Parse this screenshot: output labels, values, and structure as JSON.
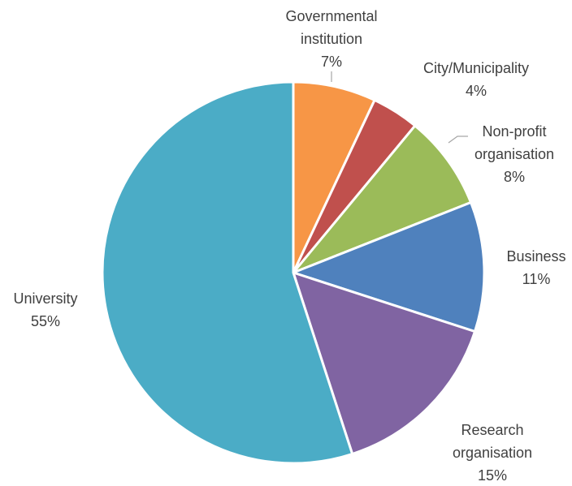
{
  "chart_data": {
    "type": "pie",
    "title": "",
    "slices": [
      {
        "name": "Governmental institution",
        "lines": [
          "Governmental",
          "institution"
        ],
        "value": 7,
        "value_label": "7%",
        "color": "#F79646"
      },
      {
        "name": "City/Municipality",
        "lines": [
          "City/Municipality"
        ],
        "value": 4,
        "value_label": "4%",
        "color": "#C0504D"
      },
      {
        "name": "Non-profit organisation",
        "lines": [
          "Non-profit",
          "organisation"
        ],
        "value": 8,
        "value_label": "8%",
        "color": "#9BBB59"
      },
      {
        "name": "Business",
        "lines": [
          "Business"
        ],
        "value": 11,
        "value_label": "11%",
        "color": "#4F81BD"
      },
      {
        "name": "Research organisation",
        "lines": [
          "Research",
          "organisation"
        ],
        "value": 15,
        "value_label": "15%",
        "color": "#8064A2"
      },
      {
        "name": "University",
        "lines": [
          "University"
        ],
        "value": 55,
        "value_label": "55%",
        "color": "#4BACC6"
      }
    ],
    "start": "12 o'clock",
    "direction": "clockwise",
    "legend": "none"
  }
}
